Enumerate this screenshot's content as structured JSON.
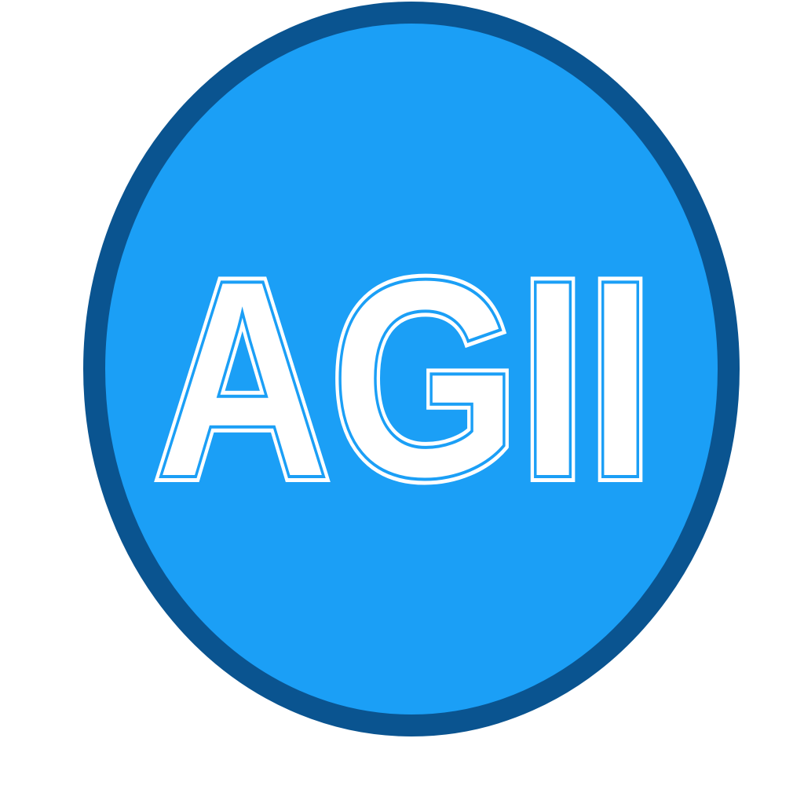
{
  "logo": {
    "text": "AGII"
  }
}
